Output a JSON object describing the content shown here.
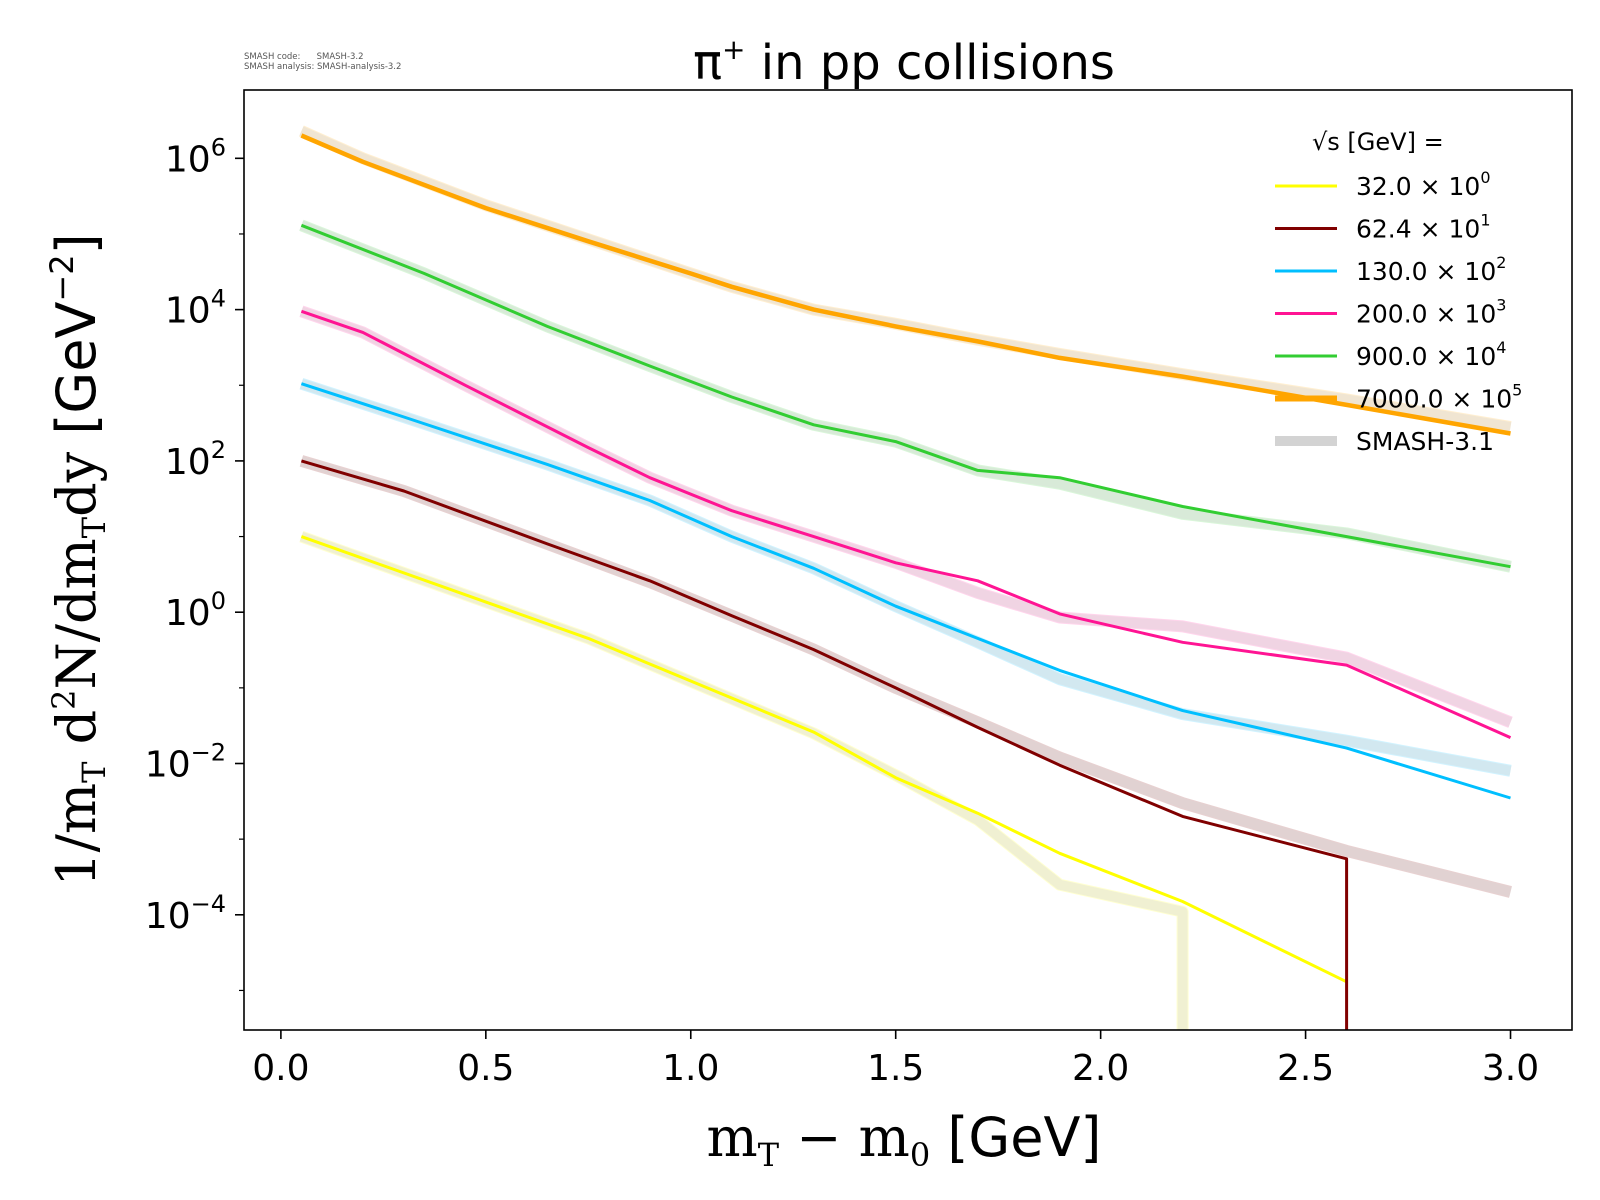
{
  "meta": {
    "code_line": "SMASH code:      SMASH-3.2",
    "analysis_line": "SMASH analysis: SMASH-analysis-3.2"
  },
  "chart_data": {
    "type": "line",
    "title_main": "π",
    "title_sup": "+",
    "title_rest": " in pp collisions",
    "xlabel": "m_T − m_0 [GeV]",
    "ylabel": "1/m_T d²N/dm_T dy [GeV⁻²]",
    "xlim": [
      -0.09,
      3.15
    ],
    "ylog": true,
    "ylim": [
      3e-06,
      8000000.0
    ],
    "xticks": [
      "0.0",
      "0.5",
      "1.0",
      "1.5",
      "2.0",
      "2.5",
      "3.0"
    ],
    "yticks": [
      {
        "base": "10",
        "exp": "6"
      },
      {
        "base": "10",
        "exp": "4"
      },
      {
        "base": "10",
        "exp": "2"
      },
      {
        "base": "10",
        "exp": "0"
      },
      {
        "base": "10",
        "exp": "−2"
      },
      {
        "base": "10",
        "exp": "−4"
      }
    ],
    "legend": {
      "title": "√s  [GeV] =",
      "placement": "top-right",
      "entries": [
        {
          "mant": "32.0 × 10",
          "exp": "0",
          "color": "#ffff00"
        },
        {
          "mant": "62.4 × 10",
          "exp": "1",
          "color": "#800000"
        },
        {
          "mant": "130.0 × 10",
          "exp": "2",
          "color": "#00bfff"
        },
        {
          "mant": "200.0 × 10",
          "exp": "3",
          "color": "#ff1493"
        },
        {
          "mant": "900.0 × 10",
          "exp": "4",
          "color": "#32cd32"
        },
        {
          "mant": "7000.0 × 10",
          "exp": "5",
          "color": "#ffa500"
        },
        {
          "mant": "SMASH-3.1",
          "exp": "",
          "color": "#d3d3d3"
        }
      ]
    },
    "series": [
      {
        "name": "32.0 × 10^0",
        "color": "#ffff00",
        "points": [
          [
            0.05,
            10
          ],
          [
            0.75,
            0.45
          ],
          [
            1.3,
            0.026
          ],
          [
            1.5,
            0.0065
          ],
          [
            1.7,
            0.0022
          ],
          [
            1.9,
            0.00065
          ],
          [
            2.2,
            0.00015
          ],
          [
            2.6,
            1.3e-05
          ]
        ],
        "ref": [
          [
            0.05,
            10
          ],
          [
            0.75,
            0.45
          ],
          [
            1.3,
            0.025
          ],
          [
            1.5,
            0.007
          ],
          [
            1.7,
            0.0018
          ],
          [
            1.9,
            0.00025
          ],
          [
            2.2,
            0.00011
          ],
          [
            2.2,
            3e-06
          ]
        ]
      },
      {
        "name": "62.4 × 10^1",
        "color": "#800000",
        "points": [
          [
            0.05,
            100
          ],
          [
            0.3,
            40
          ],
          [
            0.65,
            8
          ],
          [
            0.9,
            2.6
          ],
          [
            1.1,
            0.9
          ],
          [
            1.3,
            0.32
          ],
          [
            1.5,
            0.1
          ],
          [
            1.7,
            0.03
          ],
          [
            1.9,
            0.0095
          ],
          [
            2.2,
            0.002
          ],
          [
            2.6,
            0.00055
          ],
          [
            2.6,
            3e-06
          ]
        ],
        "ref": [
          [
            0.05,
            100
          ],
          [
            0.3,
            40
          ],
          [
            0.65,
            8
          ],
          [
            0.9,
            2.5
          ],
          [
            1.1,
            0.9
          ],
          [
            1.3,
            0.32
          ],
          [
            1.5,
            0.1
          ],
          [
            1.7,
            0.035
          ],
          [
            1.9,
            0.012
          ],
          [
            2.2,
            0.003
          ],
          [
            2.6,
            0.0007
          ],
          [
            3.0,
            0.0002
          ]
        ]
      },
      {
        "name": "130.0 × 10^2",
        "color": "#00bfff",
        "points": [
          [
            0.05,
            1050
          ],
          [
            0.3,
            380
          ],
          [
            0.65,
            90
          ],
          [
            0.9,
            30
          ],
          [
            1.1,
            10
          ],
          [
            1.3,
            3.8
          ],
          [
            1.5,
            1.2
          ],
          [
            1.7,
            0.45
          ],
          [
            1.9,
            0.17
          ],
          [
            2.2,
            0.05
          ],
          [
            2.6,
            0.016
          ],
          [
            3.0,
            0.0035
          ]
        ],
        "ref": [
          [
            0.05,
            1050
          ],
          [
            0.3,
            380
          ],
          [
            0.65,
            90
          ],
          [
            0.9,
            30
          ],
          [
            1.1,
            10
          ],
          [
            1.3,
            3.8
          ],
          [
            1.5,
            1.2
          ],
          [
            1.7,
            0.4
          ],
          [
            1.9,
            0.13
          ],
          [
            2.2,
            0.045
          ],
          [
            2.6,
            0.02
          ],
          [
            3.0,
            0.008
          ]
        ]
      },
      {
        "name": "200.0 × 10^3",
        "color": "#ff1493",
        "points": [
          [
            0.05,
            9500
          ],
          [
            0.2,
            5000
          ],
          [
            0.45,
            1000
          ],
          [
            0.75,
            150
          ],
          [
            0.9,
            60
          ],
          [
            1.1,
            22
          ],
          [
            1.3,
            10
          ],
          [
            1.5,
            4.5
          ],
          [
            1.7,
            2.6
          ],
          [
            1.9,
            0.95
          ],
          [
            2.2,
            0.4
          ],
          [
            2.6,
            0.2
          ],
          [
            3.0,
            0.022
          ]
        ],
        "ref": [
          [
            0.05,
            9500
          ],
          [
            0.2,
            5000
          ],
          [
            0.45,
            1000
          ],
          [
            0.75,
            150
          ],
          [
            0.9,
            60
          ],
          [
            1.1,
            22
          ],
          [
            1.3,
            10
          ],
          [
            1.5,
            4.5
          ],
          [
            1.7,
            1.8
          ],
          [
            1.9,
            0.85
          ],
          [
            2.2,
            0.65
          ],
          [
            2.6,
            0.25
          ],
          [
            3.0,
            0.035
          ]
        ]
      },
      {
        "name": "900.0 × 10^4",
        "color": "#32cd32",
        "points": [
          [
            0.05,
            130000
          ],
          [
            0.35,
            30000
          ],
          [
            0.65,
            6000
          ],
          [
            0.9,
            1800
          ],
          [
            1.1,
            700
          ],
          [
            1.3,
            300
          ],
          [
            1.5,
            180
          ],
          [
            1.7,
            75
          ],
          [
            1.9,
            60
          ],
          [
            2.2,
            25
          ],
          [
            2.6,
            10
          ],
          [
            3.0,
            4
          ]
        ],
        "ref": [
          [
            0.05,
            130000
          ],
          [
            0.35,
            30000
          ],
          [
            0.65,
            6000
          ],
          [
            0.9,
            1800
          ],
          [
            1.1,
            700
          ],
          [
            1.3,
            300
          ],
          [
            1.5,
            180
          ],
          [
            1.7,
            75
          ],
          [
            1.9,
            50
          ],
          [
            2.2,
            20
          ],
          [
            2.6,
            11
          ],
          [
            3.0,
            4
          ]
        ]
      },
      {
        "name": "7000.0 × 10^5",
        "color": "#ffa500",
        "points": [
          [
            0.05,
            2000000
          ],
          [
            0.2,
            900000
          ],
          [
            0.5,
            220000
          ],
          [
            0.75,
            80000
          ],
          [
            1.0,
            30000
          ],
          [
            1.1,
            20000
          ],
          [
            1.3,
            10000
          ],
          [
            1.5,
            6000
          ],
          [
            1.7,
            3800
          ],
          [
            1.9,
            2300
          ],
          [
            2.2,
            1300
          ],
          [
            2.6,
            550
          ],
          [
            3.0,
            230
          ]
        ],
        "ref": [
          [
            0.05,
            2300000
          ],
          [
            0.2,
            1000000
          ],
          [
            0.5,
            240000
          ],
          [
            0.75,
            85000
          ],
          [
            1.0,
            30000
          ],
          [
            1.1,
            20000
          ],
          [
            1.3,
            10000
          ],
          [
            1.5,
            6500
          ],
          [
            1.7,
            4000
          ],
          [
            1.9,
            2600
          ],
          [
            2.2,
            1400
          ],
          [
            2.6,
            650
          ],
          [
            3.0,
            280
          ]
        ]
      }
    ]
  }
}
